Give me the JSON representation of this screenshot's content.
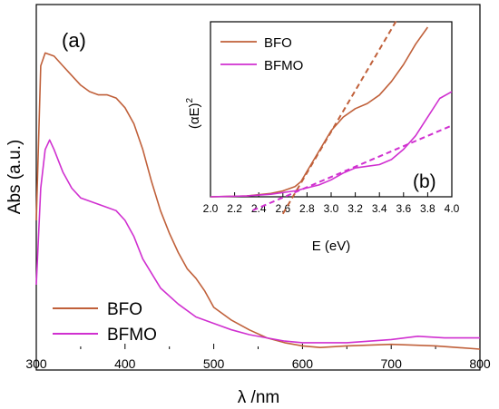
{
  "chart_data": [
    {
      "id": "main",
      "type": "line",
      "panel_label": "(a)",
      "xlabel": "λ /nm",
      "ylabel": "Abs (a.u.)",
      "xlim": [
        300,
        800
      ],
      "ylim": [
        0,
        1.0
      ],
      "x_ticks": [
        "300",
        "400",
        "500",
        "600",
        "700",
        "800"
      ],
      "legend_position": "bottom-left",
      "series": [
        {
          "name": "BFO",
          "color": "#c0603a",
          "x": [
            300,
            305,
            310,
            320,
            330,
            340,
            350,
            360,
            370,
            380,
            390,
            400,
            410,
            420,
            430,
            440,
            450,
            460,
            470,
            480,
            490,
            500,
            520,
            540,
            560,
            580,
            600,
            620,
            650,
            700,
            750,
            800
          ],
          "y": [
            0.4,
            0.88,
            0.92,
            0.91,
            0.88,
            0.85,
            0.82,
            0.8,
            0.79,
            0.79,
            0.78,
            0.75,
            0.7,
            0.62,
            0.52,
            0.43,
            0.36,
            0.3,
            0.25,
            0.22,
            0.18,
            0.13,
            0.09,
            0.06,
            0.035,
            0.02,
            0.01,
            0.005,
            0.01,
            0.015,
            0.01,
            0.0
          ]
        },
        {
          "name": "BFMO",
          "color": "#d030d0",
          "x": [
            300,
            305,
            310,
            315,
            320,
            330,
            340,
            350,
            360,
            370,
            380,
            390,
            400,
            410,
            420,
            440,
            460,
            480,
            500,
            520,
            540,
            560,
            580,
            600,
            650,
            700,
            730,
            760,
            800
          ],
          "y": [
            0.2,
            0.5,
            0.62,
            0.65,
            0.62,
            0.55,
            0.5,
            0.47,
            0.46,
            0.45,
            0.44,
            0.43,
            0.4,
            0.35,
            0.28,
            0.19,
            0.14,
            0.1,
            0.08,
            0.06,
            0.045,
            0.035,
            0.025,
            0.02,
            0.02,
            0.03,
            0.04,
            0.035,
            0.035
          ]
        }
      ]
    },
    {
      "id": "inset",
      "type": "line",
      "panel_label": "(b)",
      "xlabel": "E (eV)",
      "ylabel": "(αE)",
      "ylabel_sup": "2",
      "xlim": [
        2.0,
        4.0
      ],
      "ylim": [
        0,
        1.0
      ],
      "x_ticks": [
        "2.0",
        "2.2",
        "2.4",
        "2.6",
        "2.8",
        "3.0",
        "3.2",
        "3.4",
        "3.6",
        "3.8",
        "4.0"
      ],
      "legend_position": "top-left",
      "series": [
        {
          "name": "BFO",
          "color": "#c0603a",
          "x": [
            2.0,
            2.3,
            2.5,
            2.6,
            2.7,
            2.75,
            2.8,
            2.9,
            3.0,
            3.1,
            3.2,
            3.3,
            3.4,
            3.5,
            3.6,
            3.7,
            3.8
          ],
          "y": [
            0.0,
            0.005,
            0.02,
            0.035,
            0.06,
            0.09,
            0.15,
            0.27,
            0.39,
            0.47,
            0.52,
            0.55,
            0.6,
            0.68,
            0.78,
            0.9,
            1.0
          ]
        },
        {
          "name": "BFMO",
          "color": "#d030d0",
          "x": [
            2.0,
            2.3,
            2.5,
            2.7,
            2.9,
            3.0,
            3.1,
            3.2,
            3.3,
            3.4,
            3.5,
            3.6,
            3.7,
            3.8,
            3.9,
            4.0
          ],
          "y": [
            0.0,
            0.005,
            0.015,
            0.035,
            0.07,
            0.1,
            0.14,
            0.17,
            0.18,
            0.19,
            0.22,
            0.28,
            0.36,
            0.47,
            0.58,
            0.62
          ]
        }
      ],
      "fit_lines": [
        {
          "series": "BFO",
          "color": "#c0603a",
          "x": [
            2.6,
            3.55
          ],
          "y": [
            -0.1,
            1.05
          ]
        },
        {
          "series": "BFMO",
          "color": "#d030d0",
          "x": [
            2.35,
            4.0
          ],
          "y": [
            -0.08,
            0.42
          ]
        }
      ]
    }
  ]
}
